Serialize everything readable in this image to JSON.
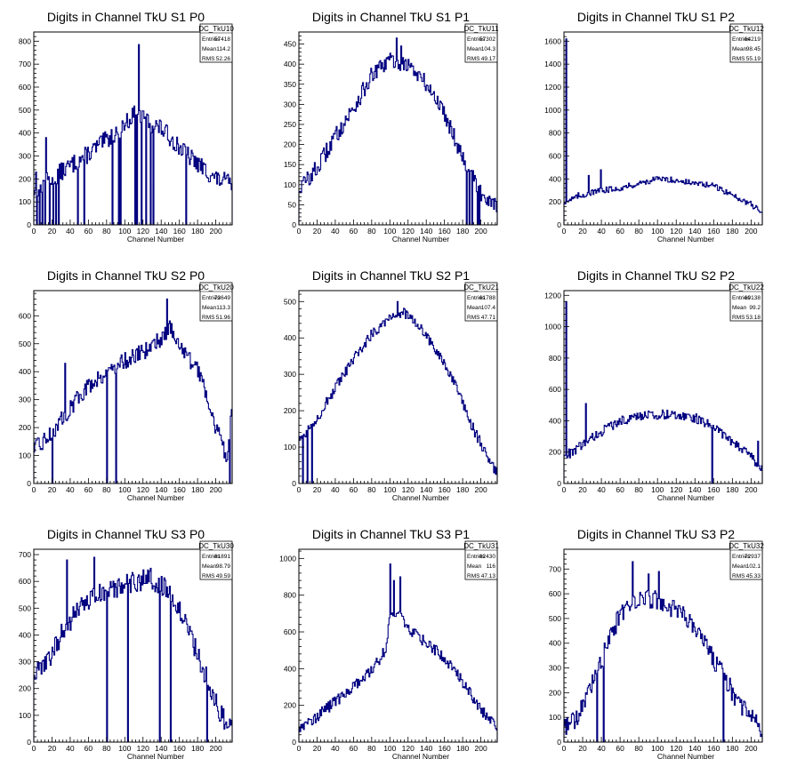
{
  "page": {
    "background": "#ffffff"
  },
  "chart_data": [
    {
      "type": "bar",
      "title": "Digits in Channel TkU S1 P0",
      "xlabel": "Channel Number",
      "ylabel": "",
      "xlim": [
        0,
        218
      ],
      "ylim": [
        0,
        840
      ],
      "xticks": [
        0,
        20,
        40,
        60,
        80,
        100,
        120,
        140,
        160,
        180,
        200
      ],
      "yticks": [
        0,
        100,
        200,
        300,
        400,
        500,
        600,
        700,
        800
      ],
      "stats": {
        "name": "DC_TkU10",
        "entries": "57418",
        "mean": "114.2",
        "rms": "52.26"
      },
      "color": "#000080",
      "profile": [
        [
          0,
          150
        ],
        [
          30,
          230
        ],
        [
          60,
          310
        ],
        [
          90,
          400
        ],
        [
          110,
          480
        ],
        [
          140,
          420
        ],
        [
          170,
          300
        ],
        [
          200,
          200
        ],
        [
          218,
          180
        ]
      ],
      "wiggle": 40,
      "spikes": [
        [
          13,
          380
        ],
        [
          115,
          785
        ],
        [
          2,
          230
        ],
        [
          12,
          230
        ]
      ],
      "dips": [
        3,
        6,
        9,
        12,
        17,
        21,
        24,
        27,
        48,
        55,
        86,
        93,
        95,
        111,
        113,
        118,
        123,
        128,
        131,
        167
      ]
    },
    {
      "type": "bar",
      "title": "Digits in Channel TkU S1 P1",
      "xlabel": "Channel Number",
      "ylabel": "",
      "xlim": [
        0,
        218
      ],
      "ylim": [
        0,
        480
      ],
      "xticks": [
        0,
        20,
        40,
        60,
        80,
        100,
        120,
        140,
        160,
        180,
        200
      ],
      "yticks": [
        0,
        50,
        100,
        150,
        200,
        250,
        300,
        350,
        400,
        450
      ],
      "stats": {
        "name": "DC_TkU11",
        "entries": "57302",
        "mean": "104.3",
        "rms": "49.17"
      },
      "color": "#000080",
      "profile": [
        [
          0,
          90
        ],
        [
          20,
          140
        ],
        [
          40,
          220
        ],
        [
          60,
          290
        ],
        [
          80,
          370
        ],
        [
          100,
          410
        ],
        [
          120,
          400
        ],
        [
          140,
          350
        ],
        [
          160,
          280
        ],
        [
          180,
          170
        ],
        [
          200,
          80
        ],
        [
          218,
          50
        ]
      ],
      "wiggle": 22,
      "spikes": [
        [
          107,
          465
        ],
        [
          112,
          445
        ]
      ],
      "dips": [
        184,
        187,
        190,
        196,
        198,
        218
      ]
    },
    {
      "type": "bar",
      "title": "Digits in Channel TkU S1 P2",
      "xlabel": "Channel Number",
      "ylabel": "",
      "xlim": [
        0,
        212
      ],
      "ylim": [
        0,
        1680
      ],
      "xticks": [
        0,
        20,
        40,
        60,
        80,
        100,
        120,
        140,
        160,
        180,
        200
      ],
      "yticks": [
        0,
        200,
        400,
        600,
        800,
        1000,
        1200,
        1400,
        1600
      ],
      "stats": {
        "name": "DC_TkU12",
        "entries": "64219",
        "mean": "98.45",
        "rms": "55.19"
      },
      "color": "#000080",
      "profile": [
        [
          0,
          200
        ],
        [
          10,
          230
        ],
        [
          20,
          260
        ],
        [
          40,
          300
        ],
        [
          60,
          320
        ],
        [
          80,
          360
        ],
        [
          100,
          400
        ],
        [
          120,
          390
        ],
        [
          140,
          360
        ],
        [
          160,
          340
        ],
        [
          180,
          260
        ],
        [
          200,
          180
        ],
        [
          212,
          100
        ]
      ],
      "wiggle": 25,
      "spikes": [
        [
          2,
          1620
        ],
        [
          26,
          430
        ],
        [
          39,
          480
        ],
        [
          15,
          280
        ]
      ],
      "dips": []
    },
    {
      "type": "bar",
      "title": "Digits in Channel TkU S2 P0",
      "xlabel": "Channel Number",
      "ylabel": "",
      "xlim": [
        0,
        218
      ],
      "ylim": [
        0,
        690
      ],
      "xticks": [
        0,
        20,
        40,
        60,
        80,
        100,
        120,
        140,
        160,
        180,
        200
      ],
      "yticks": [
        0,
        100,
        200,
        300,
        400,
        500,
        600
      ],
      "stats": {
        "name": "DC_TkU20",
        "entries": "73649",
        "mean": "113.3",
        "rms": "51.96"
      },
      "color": "#000080",
      "profile": [
        [
          0,
          120
        ],
        [
          20,
          180
        ],
        [
          40,
          270
        ],
        [
          60,
          350
        ],
        [
          80,
          400
        ],
        [
          100,
          440
        ],
        [
          120,
          470
        ],
        [
          140,
          520
        ],
        [
          150,
          560
        ],
        [
          165,
          470
        ],
        [
          185,
          380
        ],
        [
          200,
          200
        ],
        [
          212,
          100
        ],
        [
          218,
          250
        ]
      ],
      "wiggle": 30,
      "spikes": [
        [
          34,
          430
        ],
        [
          146,
          660
        ]
      ],
      "dips": [
        20,
        80,
        90,
        215
      ]
    },
    {
      "type": "bar",
      "title": "Digits in Channel TkU S2 P1",
      "xlabel": "Channel Number",
      "ylabel": "",
      "xlim": [
        0,
        218
      ],
      "ylim": [
        0,
        530
      ],
      "xticks": [
        0,
        20,
        40,
        60,
        80,
        100,
        120,
        140,
        160,
        180,
        200
      ],
      "yticks": [
        0,
        100,
        200,
        300,
        400,
        500
      ],
      "stats": {
        "name": "DC_TkU21",
        "entries": "61788",
        "mean": "107.4",
        "rms": "47.71"
      },
      "color": "#000080",
      "profile": [
        [
          0,
          120
        ],
        [
          20,
          180
        ],
        [
          40,
          260
        ],
        [
          60,
          340
        ],
        [
          80,
          410
        ],
        [
          100,
          460
        ],
        [
          115,
          470
        ],
        [
          130,
          440
        ],
        [
          150,
          370
        ],
        [
          170,
          280
        ],
        [
          190,
          160
        ],
        [
          210,
          60
        ],
        [
          218,
          30
        ]
      ],
      "wiggle": 15,
      "spikes": [
        [
          108,
          500
        ]
      ],
      "dips": [
        4,
        9,
        14
      ]
    },
    {
      "type": "bar",
      "title": "Digits in Channel TkU S2 P2",
      "xlabel": "Channel Number",
      "ylabel": "",
      "xlim": [
        0,
        212
      ],
      "ylim": [
        0,
        1230
      ],
      "xticks": [
        0,
        20,
        40,
        60,
        80,
        100,
        120,
        140,
        160,
        180,
        200
      ],
      "yticks": [
        0,
        200,
        400,
        600,
        800,
        1000,
        1200
      ],
      "stats": {
        "name": "DC_TkU22",
        "entries": "69138",
        "mean": "99.2",
        "rms": "53.18"
      },
      "color": "#000080",
      "profile": [
        [
          0,
          180
        ],
        [
          10,
          200
        ],
        [
          20,
          250
        ],
        [
          40,
          330
        ],
        [
          60,
          400
        ],
        [
          80,
          430
        ],
        [
          100,
          440
        ],
        [
          120,
          440
        ],
        [
          140,
          420
        ],
        [
          160,
          360
        ],
        [
          180,
          260
        ],
        [
          200,
          180
        ],
        [
          212,
          80
        ]
      ],
      "wiggle": 30,
      "spikes": [
        [
          2,
          1160
        ],
        [
          23,
          510
        ],
        [
          207,
          270
        ]
      ],
      "dips": [
        158
      ]
    },
    {
      "type": "bar",
      "title": "Digits in Channel TkU S3 P0",
      "xlabel": "Channel Number",
      "ylabel": "",
      "xlim": [
        0,
        218
      ],
      "ylim": [
        0,
        720
      ],
      "xticks": [
        0,
        20,
        40,
        60,
        80,
        100,
        120,
        140,
        160,
        180,
        200
      ],
      "yticks": [
        0,
        100,
        200,
        300,
        400,
        500,
        600,
        700
      ],
      "stats": {
        "name": "DC_TkU30",
        "entries": "81891",
        "mean": "98.79",
        "rms": "49.59"
      },
      "color": "#000080",
      "profile": [
        [
          0,
          250
        ],
        [
          15,
          300
        ],
        [
          30,
          400
        ],
        [
          50,
          500
        ],
        [
          70,
          550
        ],
        [
          90,
          570
        ],
        [
          110,
          600
        ],
        [
          130,
          610
        ],
        [
          150,
          560
        ],
        [
          170,
          420
        ],
        [
          190,
          240
        ],
        [
          205,
          100
        ],
        [
          218,
          60
        ]
      ],
      "wiggle": 40,
      "spikes": [
        [
          36,
          680
        ],
        [
          66,
          690
        ]
      ],
      "dips": [
        80,
        103,
        138,
        150,
        190
      ]
    },
    {
      "type": "bar",
      "title": "Digits in Channel TkU S3 P1",
      "xlabel": "Channel Number",
      "ylabel": "",
      "xlim": [
        0,
        218
      ],
      "ylim": [
        0,
        1050
      ],
      "xticks": [
        0,
        20,
        40,
        60,
        80,
        100,
        120,
        140,
        160,
        180,
        200
      ],
      "yticks": [
        0,
        200,
        400,
        600,
        800,
        1000
      ],
      "stats": {
        "name": "DC_TkU31",
        "entries": "82430",
        "mean": "116",
        "rms": "47.13"
      },
      "color": "#000080",
      "profile": [
        [
          0,
          80
        ],
        [
          20,
          140
        ],
        [
          40,
          220
        ],
        [
          60,
          300
        ],
        [
          80,
          390
        ],
        [
          95,
          500
        ],
        [
          100,
          680
        ],
        [
          110,
          700
        ],
        [
          120,
          620
        ],
        [
          140,
          540
        ],
        [
          160,
          460
        ],
        [
          180,
          330
        ],
        [
          200,
          180
        ],
        [
          212,
          110
        ],
        [
          218,
          50
        ]
      ],
      "wiggle": 30,
      "spikes": [
        [
          100,
          970
        ],
        [
          111,
          900
        ],
        [
          104,
          880
        ]
      ],
      "dips": []
    },
    {
      "type": "bar",
      "title": "Digits in Channel TkU S3 P2",
      "xlabel": "Channel Number",
      "ylabel": "",
      "xlim": [
        0,
        212
      ],
      "ylim": [
        0,
        780
      ],
      "xticks": [
        0,
        20,
        40,
        60,
        80,
        100,
        120,
        140,
        160,
        180,
        200
      ],
      "yticks": [
        0,
        100,
        200,
        300,
        400,
        500,
        600,
        700
      ],
      "stats": {
        "name": "DC_TkU32",
        "entries": "72937",
        "mean": "102.1",
        "rms": "45.33"
      },
      "color": "#000080",
      "profile": [
        [
          0,
          60
        ],
        [
          15,
          100
        ],
        [
          30,
          230
        ],
        [
          45,
          380
        ],
        [
          60,
          520
        ],
        [
          75,
          580
        ],
        [
          90,
          580
        ],
        [
          110,
          560
        ],
        [
          130,
          500
        ],
        [
          150,
          400
        ],
        [
          170,
          270
        ],
        [
          190,
          140
        ],
        [
          205,
          80
        ],
        [
          212,
          40
        ]
      ],
      "wiggle": 40,
      "spikes": [
        [
          73,
          730
        ],
        [
          101,
          690
        ],
        [
          90,
          680
        ]
      ],
      "dips": [
        35,
        42,
        170
      ]
    }
  ]
}
